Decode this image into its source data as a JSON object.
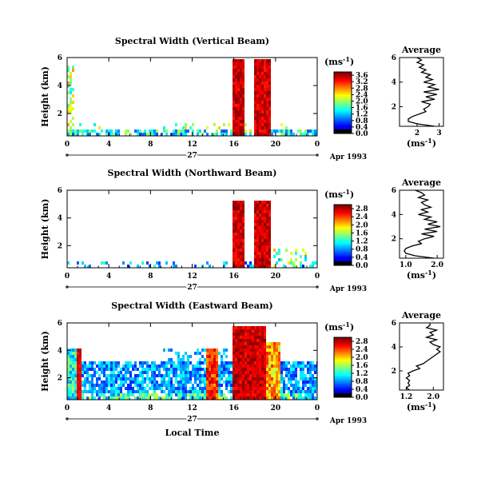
{
  "chart_data": [
    {
      "type": "heatmap",
      "panel": "vertical",
      "title": "Spectral Width (Vertical Beam)",
      "ylabel": "Height (km)",
      "x_ticks": [
        "0",
        "4",
        "8",
        "12",
        "16",
        "20",
        "0"
      ],
      "xlim": [
        0,
        24
      ],
      "y_ticks": [
        "2",
        "4",
        "6"
      ],
      "ylim": [
        0.4,
        6.0
      ],
      "date_day": "27",
      "date_label": "Apr 1993",
      "colorbar": {
        "unit_base": "(ms",
        "unit_exp": "-1",
        "unit_close": ")",
        "ticks": [
          "0.0",
          "0.4",
          "0.8",
          "1.2",
          "1.6",
          "2.0",
          "2.4",
          "2.8",
          "3.2",
          "3.6"
        ],
        "max": 3.8
      },
      "average_profile": {
        "title": "Average",
        "xlabel_base": "(ms",
        "xlabel_exp": "-1",
        "xlabel_close": ")",
        "x_ticks": [
          "2",
          "3"
        ],
        "xlim": [
          1.2,
          3.2
        ],
        "y_ticks": [
          "2",
          "4",
          "6"
        ],
        "ylim": [
          0.4,
          6.0
        ],
        "height_km": [
          0.4,
          0.6,
          0.8,
          1.0,
          1.2,
          1.4,
          1.6,
          1.8,
          2.0,
          2.2,
          2.4,
          2.6,
          2.8,
          3.0,
          3.2,
          3.4,
          3.6,
          3.8,
          4.0,
          4.2,
          4.4,
          4.6,
          4.8,
          5.0,
          5.2,
          5.4,
          5.6,
          5.8,
          6.0
        ],
        "width": [
          2.8,
          2.0,
          1.6,
          1.6,
          1.8,
          2.1,
          2.4,
          2.3,
          2.5,
          2.6,
          2.2,
          2.8,
          2.4,
          2.9,
          2.3,
          3.0,
          2.5,
          2.8,
          2.3,
          2.7,
          2.4,
          2.6,
          2.2,
          2.4,
          2.1,
          2.3,
          2.0,
          2.2,
          2.0
        ]
      }
    },
    {
      "type": "heatmap",
      "panel": "northward",
      "title": "Spectral Width (Northward Beam)",
      "ylabel": "Height (km)",
      "x_ticks": [
        "0",
        "4",
        "8",
        "12",
        "16",
        "20",
        "0"
      ],
      "xlim": [
        0,
        24
      ],
      "y_ticks": [
        "2",
        "4",
        "6"
      ],
      "ylim": [
        0.4,
        6.0
      ],
      "date_day": "27",
      "date_label": "Apr 1993",
      "colorbar": {
        "unit_base": "(ms",
        "unit_exp": "-1",
        "unit_close": ")",
        "ticks": [
          "0.0",
          "0.4",
          "0.8",
          "1.2",
          "1.6",
          "2.0",
          "2.4",
          "2.8"
        ],
        "max": 3.0
      },
      "average_profile": {
        "title": "Average",
        "xlabel_base": "(ms",
        "xlabel_exp": "-1",
        "xlabel_close": ")",
        "x_ticks": [
          "1.0",
          "2.0"
        ],
        "xlim": [
          0.8,
          2.2
        ],
        "y_ticks": [
          "2",
          "4",
          "6"
        ],
        "ylim": [
          0.4,
          6.0
        ],
        "height_km": [
          0.4,
          0.6,
          0.8,
          1.0,
          1.2,
          1.4,
          1.6,
          1.8,
          2.0,
          2.2,
          2.4,
          2.6,
          2.8,
          3.0,
          3.2,
          3.4,
          3.6,
          3.8,
          4.0,
          4.2,
          4.4,
          4.6,
          4.8,
          5.0,
          5.2,
          5.4,
          5.6,
          5.8,
          6.0
        ],
        "width": [
          1.9,
          1.3,
          1.0,
          0.95,
          1.0,
          1.2,
          1.5,
          1.4,
          1.6,
          1.9,
          1.5,
          2.0,
          1.6,
          2.1,
          1.7,
          2.0,
          1.6,
          1.8,
          1.4,
          1.7,
          1.5,
          1.8,
          1.6,
          1.5,
          1.7,
          1.4,
          1.6,
          1.5,
          1.3
        ]
      }
    },
    {
      "type": "heatmap",
      "panel": "eastward",
      "title": "Spectral Width (Eastward Beam)",
      "ylabel": "Height (km)",
      "xlabel": "Local Time",
      "x_ticks": [
        "0",
        "4",
        "8",
        "12",
        "16",
        "20",
        "0"
      ],
      "xlim": [
        0,
        24
      ],
      "y_ticks": [
        "2",
        "4",
        "6"
      ],
      "ylim": [
        0.4,
        6.0
      ],
      "date_day": "27",
      "date_label": "Apr 1993",
      "colorbar": {
        "unit_base": "(ms",
        "unit_exp": "-1",
        "unit_close": ")",
        "ticks": [
          "0.0",
          "0.4",
          "0.8",
          "1.2",
          "1.6",
          "2.0",
          "2.4",
          "2.8"
        ],
        "max": 3.0
      },
      "average_profile": {
        "title": "Average",
        "xlabel_base": "(ms",
        "xlabel_exp": "-1",
        "xlabel_close": ")",
        "x_ticks": [
          "1.2",
          "2.0"
        ],
        "xlim": [
          1.0,
          2.3
        ],
        "y_ticks": [
          "2",
          "4",
          "6"
        ],
        "ylim": [
          0.4,
          6.0
        ],
        "height_km": [
          0.4,
          0.6,
          0.8,
          1.0,
          1.2,
          1.4,
          1.6,
          1.8,
          2.0,
          2.2,
          2.4,
          2.6,
          2.8,
          3.0,
          3.2,
          3.4,
          3.6,
          3.8,
          4.0,
          4.2,
          4.4,
          4.6,
          4.8,
          5.0,
          5.2,
          5.4,
          5.6,
          5.8,
          6.0
        ],
        "width": [
          1.3,
          1.2,
          1.3,
          1.25,
          1.3,
          1.2,
          1.3,
          1.25,
          1.4,
          1.6,
          1.5,
          1.7,
          1.8,
          1.9,
          2.0,
          2.1,
          2.2,
          2.1,
          2.2,
          2.0,
          1.9,
          2.1,
          1.8,
          2.0,
          1.9,
          2.1,
          1.8,
          1.9,
          1.9
        ]
      }
    }
  ]
}
